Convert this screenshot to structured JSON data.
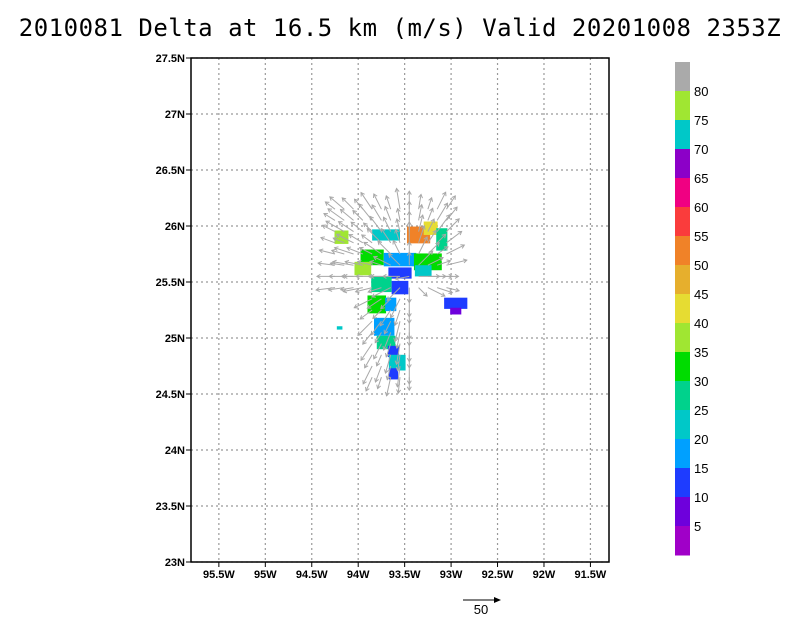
{
  "title": "2010081 Delta at 16.5 km (m/s) Valid 20201008  2353Z",
  "chart_data": {
    "type": "heatmap",
    "title": "2010081 Delta at 16.5 km (m/s) Valid 20201008  2353Z",
    "xlim": [
      -95.8,
      -91.3
    ],
    "ylim": [
      23.0,
      27.5
    ],
    "x_ticks": [
      {
        "v": -95.5,
        "label": "95.5W"
      },
      {
        "v": -95,
        "label": "95W"
      },
      {
        "v": -94.5,
        "label": "94.5W"
      },
      {
        "v": -94,
        "label": "94W"
      },
      {
        "v": -93.5,
        "label": "93.5W"
      },
      {
        "v": -93,
        "label": "93W"
      },
      {
        "v": -92.5,
        "label": "92.5W"
      },
      {
        "v": -92,
        "label": "92W"
      },
      {
        "v": -91.5,
        "label": "91.5W"
      }
    ],
    "y_ticks": [
      {
        "v": 23,
        "label": "23N"
      },
      {
        "v": 23.5,
        "label": "23.5N"
      },
      {
        "v": 24,
        "label": "24N"
      },
      {
        "v": 24.5,
        "label": "24.5N"
      },
      {
        "v": 25,
        "label": "25N"
      },
      {
        "v": 25.5,
        "label": "25.5N"
      },
      {
        "v": 26,
        "label": "26N"
      },
      {
        "v": 26.5,
        "label": "26.5N"
      },
      {
        "v": 27,
        "label": "27N"
      },
      {
        "v": 27.5,
        "label": "27.5N"
      }
    ],
    "grid": true,
    "colorbar": {
      "labels": [
        "5",
        "10",
        "15",
        "20",
        "25",
        "30",
        "35",
        "40",
        "45",
        "50",
        "55",
        "60",
        "65",
        "70",
        "75",
        "80"
      ],
      "colors": [
        "#a000c8",
        "#6e00dc",
        "#1e3cff",
        "#00a0ff",
        "#00c8c8",
        "#00d28c",
        "#00dc00",
        "#a0e632",
        "#e6dc32",
        "#e6af2d",
        "#f08228",
        "#fa3c3c",
        "#f00082",
        "#8c00c8",
        "#00c8c8",
        "#a0e632",
        "#aaaaaa"
      ]
    },
    "cells": [
      {
        "lon": -94.18,
        "lat": 25.9,
        "w": 0.15,
        "h": 0.12,
        "value": 78
      },
      {
        "lon": -93.7,
        "lat": 25.92,
        "w": 0.3,
        "h": 0.1,
        "value": 20
      },
      {
        "lon": -93.35,
        "lat": 25.92,
        "w": 0.25,
        "h": 0.15,
        "value": 50
      },
      {
        "lon": -93.22,
        "lat": 25.98,
        "w": 0.15,
        "h": 0.12,
        "value": 40
      },
      {
        "lon": -93.1,
        "lat": 25.88,
        "w": 0.12,
        "h": 0.2,
        "value": 27
      },
      {
        "lon": -93.85,
        "lat": 25.72,
        "w": 0.25,
        "h": 0.14,
        "value": 32
      },
      {
        "lon": -93.95,
        "lat": 25.62,
        "w": 0.18,
        "h": 0.12,
        "value": 38
      },
      {
        "lon": -93.55,
        "lat": 25.7,
        "w": 0.35,
        "h": 0.12,
        "value": 15
      },
      {
        "lon": -93.25,
        "lat": 25.68,
        "w": 0.3,
        "h": 0.15,
        "value": 30
      },
      {
        "lon": -93.55,
        "lat": 25.58,
        "w": 0.25,
        "h": 0.1,
        "value": 12
      },
      {
        "lon": -93.3,
        "lat": 25.6,
        "w": 0.18,
        "h": 0.1,
        "value": 22
      },
      {
        "lon": -93.75,
        "lat": 25.48,
        "w": 0.22,
        "h": 0.14,
        "value": 27
      },
      {
        "lon": -93.55,
        "lat": 25.45,
        "w": 0.18,
        "h": 0.12,
        "value": 12
      },
      {
        "lon": -93.8,
        "lat": 25.3,
        "w": 0.2,
        "h": 0.16,
        "value": 30
      },
      {
        "lon": -93.65,
        "lat": 25.3,
        "w": 0.12,
        "h": 0.12,
        "value": 18
      },
      {
        "lon": -93.72,
        "lat": 25.1,
        "w": 0.22,
        "h": 0.16,
        "value": 18
      },
      {
        "lon": -93.7,
        "lat": 24.96,
        "w": 0.2,
        "h": 0.12,
        "value": 25
      },
      {
        "lon": -93.62,
        "lat": 24.88,
        "w": 0.12,
        "h": 0.1,
        "value": 12
      },
      {
        "lon": -93.58,
        "lat": 24.78,
        "w": 0.18,
        "h": 0.14,
        "value": 20
      },
      {
        "lon": -93.62,
        "lat": 24.68,
        "w": 0.1,
        "h": 0.1,
        "value": 12
      },
      {
        "lon": -92.95,
        "lat": 25.31,
        "w": 0.25,
        "h": 0.1,
        "value": 12
      },
      {
        "lon": -92.95,
        "lat": 25.24,
        "w": 0.12,
        "h": 0.06,
        "value": 7
      },
      {
        "lon": -94.2,
        "lat": 25.09,
        "w": 0.06,
        "h": 0.03,
        "value": 20
      }
    ],
    "vector_reference": {
      "label": "50"
    }
  }
}
